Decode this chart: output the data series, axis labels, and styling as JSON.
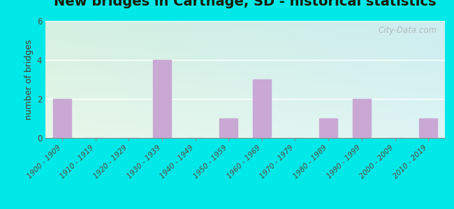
{
  "title": "New bridges in Carthage, SD - historical statistics",
  "ylabel": "number of bridges",
  "categories": [
    "1900 - 1909",
    "1910 - 1919",
    "1920 - 1929",
    "1930 - 1939",
    "1940 - 1949",
    "1950 - 1959",
    "1960 - 1969",
    "1970 - 1979",
    "1980 - 1989",
    "1990 - 1999",
    "2000 - 2009",
    "2010 - 2019"
  ],
  "values": [
    2,
    0,
    0,
    4,
    0,
    1,
    3,
    0,
    1,
    2,
    0,
    1
  ],
  "bar_color": "#c9a8d4",
  "ylim": [
    0,
    6
  ],
  "yticks": [
    0,
    2,
    4,
    6
  ],
  "bg_topleft": "#d4efe0",
  "bg_topright": "#cceef0",
  "bg_bottomleft": "#e8f8e8",
  "bg_bottomright": "#ddf5f5",
  "outer_bg": "#00e8e8",
  "title_color": "#1a1a00",
  "label_color": "#4a3a2a",
  "tick_color": "#5a4a3a",
  "grid_color": "#ffffff",
  "watermark_text": "City-Data.com",
  "title_fontsize": 14,
  "label_fontsize": 9,
  "tick_fontsize": 7.5
}
